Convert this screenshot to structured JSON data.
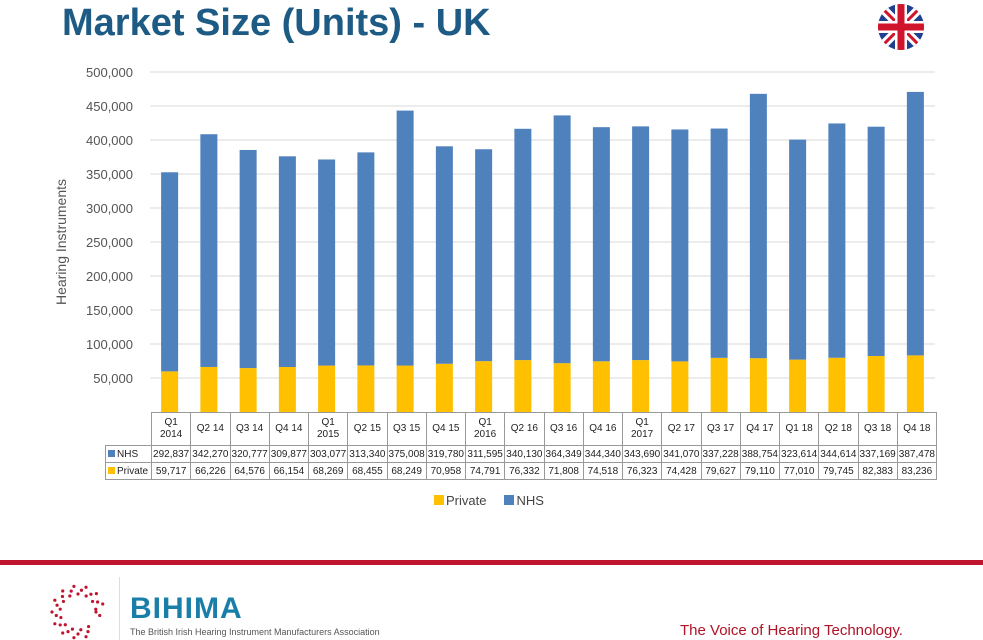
{
  "header": {
    "title": "Market Size (Units) - UK",
    "flag_icon": "uk-flag"
  },
  "footer": {
    "brand": "BIHIMA",
    "brand_sub": "The British Irish Hearing Instrument Manufacturers Association",
    "tagline": "The Voice of Hearing Technology.",
    "accent": "#c0152f"
  },
  "chart_data": {
    "type": "bar",
    "stacked": true,
    "categories": [
      "Q1 2014",
      "Q2 14",
      "Q3 14",
      "Q4 14",
      "Q1 2015",
      "Q2 15",
      "Q3 15",
      "Q4 15",
      "Q1 2016",
      "Q2 16",
      "Q3 16",
      "Q4 16",
      "Q1 2017",
      "Q2 17",
      "Q3 17",
      "Q4 17",
      "Q1 18",
      "Q2 18",
      "Q3 18",
      "Q4 18"
    ],
    "series": [
      {
        "name": "Private",
        "color": "#ffc000",
        "values": [
          59717,
          66226,
          64576,
          66154,
          68269,
          68455,
          68249,
          70958,
          74791,
          76332,
          71808,
          74518,
          76323,
          74428,
          79627,
          79110,
          77010,
          79745,
          82383,
          83236
        ]
      },
      {
        "name": "NHS",
        "color": "#4f81bd",
        "values": [
          292837,
          342270,
          320777,
          309877,
          303077,
          313340,
          375008,
          319780,
          311595,
          340130,
          364349,
          344340,
          343690,
          341070,
          337228,
          388754,
          323614,
          344614,
          337169,
          387478
        ]
      }
    ],
    "ylabel": "Hearing Instruments",
    "ylim": [
      0,
      500000
    ],
    "yticks": [
      "-",
      "50,000",
      "100,000",
      "150,000",
      "200,000",
      "250,000",
      "300,000",
      "350,000",
      "400,000",
      "450,000",
      "500,000"
    ],
    "grid": true,
    "legend": "bottom",
    "table": {
      "rows": [
        {
          "label": "NHS",
          "values": [
            "292,837",
            "342,270",
            "320,777",
            "309,877",
            "303,077",
            "313,340",
            "375,008",
            "319,780",
            "311,595",
            "340,130",
            "364,349",
            "344,340",
            "343,690",
            "341,070",
            "337,228",
            "388,754",
            "323,614",
            "344,614",
            "337,169",
            "387,478"
          ]
        },
        {
          "label": "Private",
          "values": [
            "59,717",
            "66,226",
            "64,576",
            "66,154",
            "68,269",
            "68,455",
            "68,249",
            "70,958",
            "74,791",
            "76,332",
            "71,808",
            "74,518",
            "76,323",
            "74,428",
            "79,627",
            "79,110",
            "77,010",
            "79,745",
            "82,383",
            "83,236"
          ]
        }
      ]
    }
  }
}
